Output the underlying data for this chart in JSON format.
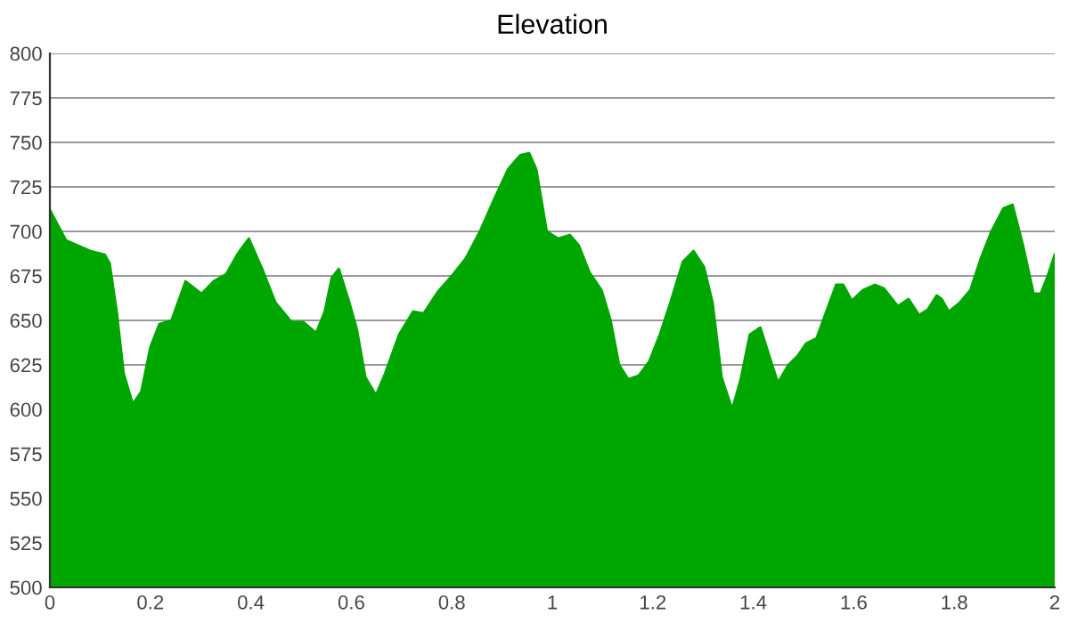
{
  "chart_data": {
    "type": "area",
    "title": "Elevation",
    "x": [
      0,
      0.032,
      0.056,
      0.081,
      0.109,
      0.119,
      0.133,
      0.147,
      0.165,
      0.182,
      0.2,
      0.218,
      0.242,
      0.27,
      0.302,
      0.326,
      0.351,
      0.375,
      0.396,
      0.421,
      0.449,
      0.481,
      0.505,
      0.53,
      0.547,
      0.561,
      0.575,
      0.596,
      0.611,
      0.628,
      0.649,
      0.667,
      0.695,
      0.723,
      0.744,
      0.772,
      0.8,
      0.828,
      0.856,
      0.884,
      0.912,
      0.937,
      0.954,
      0.968,
      0.989,
      1.011,
      1.035,
      1.053,
      1.074,
      1.098,
      1.116,
      1.133,
      1.151,
      1.172,
      1.193,
      1.214,
      1.235,
      1.26,
      1.281,
      1.302,
      1.319,
      1.337,
      1.358,
      1.375,
      1.393,
      1.414,
      1.432,
      1.449,
      1.47,
      1.488,
      1.505,
      1.526,
      1.544,
      1.565,
      1.579,
      1.596,
      1.618,
      1.642,
      1.66,
      1.688,
      1.709,
      1.73,
      1.747,
      1.765,
      1.775,
      1.789,
      1.811,
      1.832,
      1.853,
      1.874,
      1.898,
      1.916,
      1.937,
      1.958,
      1.972,
      1.986,
      2
    ],
    "series": [
      {
        "color": "#00a600",
        "values": [
          712,
          695,
          692,
          689,
          687,
          682,
          655,
          620,
          603,
          610,
          635,
          648,
          650,
          672,
          665,
          672,
          676,
          688,
          696,
          680,
          660,
          649,
          649,
          643,
          655,
          674,
          679,
          660,
          645,
          618,
          608,
          620,
          642,
          655,
          654,
          666,
          675,
          685,
          700,
          718,
          735,
          743,
          744,
          735,
          700,
          696,
          698,
          692,
          677,
          667,
          650,
          625,
          617,
          619,
          627,
          642,
          660,
          683,
          689,
          680,
          660,
          618,
          600,
          617,
          642,
          646,
          630,
          615,
          625,
          630,
          637,
          640,
          654,
          670,
          670,
          661,
          667,
          670,
          668,
          658,
          662,
          653,
          656,
          664,
          662,
          655,
          660,
          667,
          685,
          700,
          713,
          715,
          692,
          665,
          665,
          675,
          687
        ]
      }
    ],
    "xlim": [
      0,
      2
    ],
    "ylim": [
      500,
      800
    ],
    "xticks": [
      0,
      0.2,
      0.4,
      0.6,
      0.8,
      1,
      1.2,
      1.4,
      1.6,
      1.8,
      2
    ],
    "yticks": [
      500,
      525,
      550,
      575,
      600,
      625,
      650,
      675,
      700,
      725,
      750,
      775,
      800
    ],
    "grid": "y"
  }
}
